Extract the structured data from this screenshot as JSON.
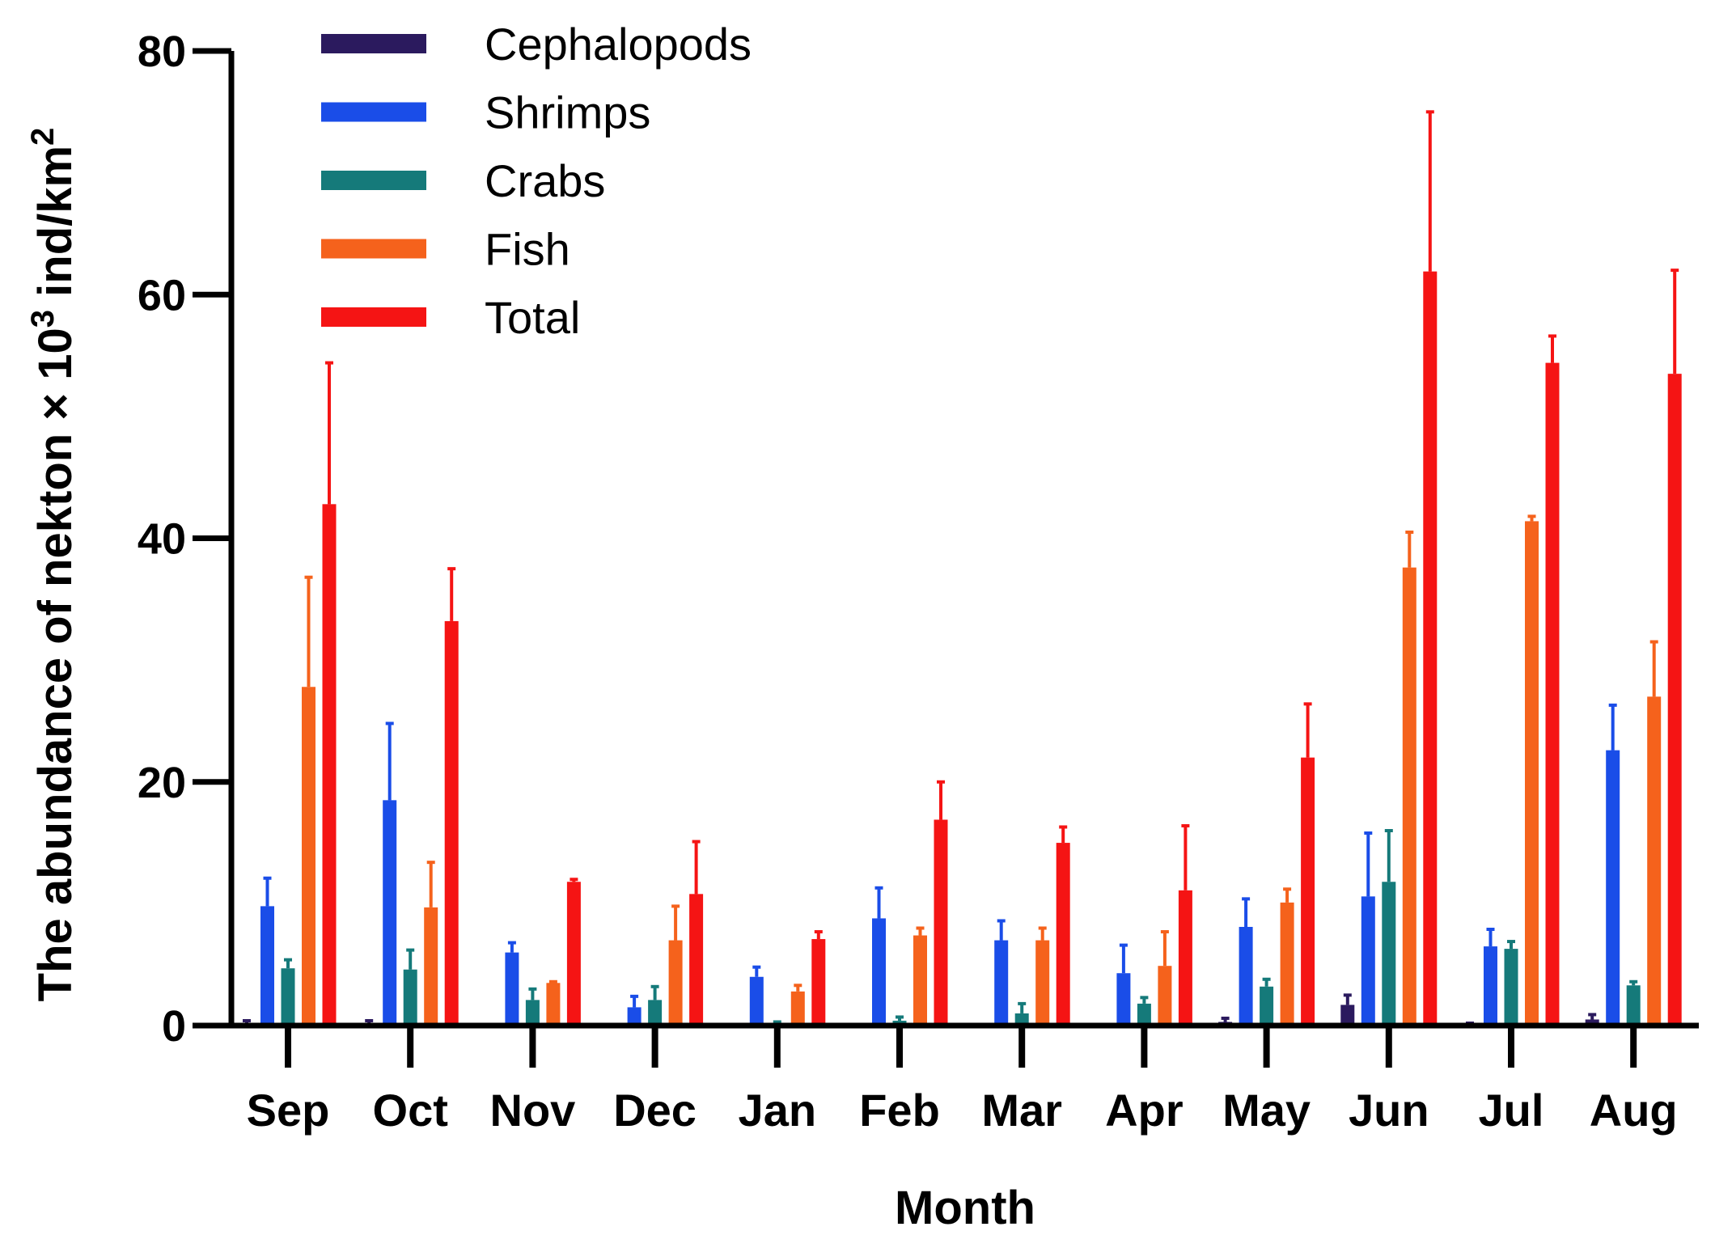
{
  "chart_data": {
    "type": "bar",
    "title": "",
    "xlabel": "Month",
    "ylabel_prefix": "The abundance of nekton × 10",
    "ylabel_exp": "3",
    "ylabel_unit": " ind/km",
    "ylabel_unit_exp": "2",
    "ylim": [
      0,
      80
    ],
    "yticks": [
      0,
      20,
      40,
      60,
      80
    ],
    "grid": false,
    "legend_position": "top-left",
    "categories": [
      "Sep",
      "Oct",
      "Nov",
      "Dec",
      "Jan",
      "Feb",
      "Mar",
      "Apr",
      "May",
      "Jun",
      "Jul",
      "Aug"
    ],
    "series": [
      {
        "name": "Cephalopods",
        "color": "#2b1a5e",
        "values": [
          0.2,
          0.2,
          0,
          0,
          0,
          0,
          0,
          0,
          0.3,
          1.7,
          0.1,
          0.5
        ],
        "errors": [
          0.2,
          0.2,
          0,
          0,
          0,
          0,
          0,
          0,
          0.3,
          0.8,
          0.1,
          0.4
        ]
      },
      {
        "name": "Shrimps",
        "color": "#1a4de8",
        "values": [
          9.8,
          18.5,
          6.0,
          1.5,
          4.0,
          8.8,
          7.0,
          4.3,
          8.1,
          10.6,
          6.5,
          22.6
        ],
        "errors": [
          2.3,
          6.3,
          0.8,
          0.9,
          0.8,
          2.5,
          1.6,
          2.3,
          2.3,
          5.2,
          1.4,
          3.7
        ]
      },
      {
        "name": "Crabs",
        "color": "#157a7a",
        "values": [
          4.7,
          4.6,
          2.1,
          2.1,
          0.2,
          0.4,
          1.0,
          1.8,
          3.2,
          11.8,
          6.3,
          3.3
        ],
        "errors": [
          0.7,
          1.6,
          0.9,
          1.1,
          0.1,
          0.3,
          0.8,
          0.5,
          0.6,
          4.2,
          0.6,
          0.3
        ]
      },
      {
        "name": "Fish",
        "color": "#f5621c",
        "values": [
          27.8,
          9.7,
          3.5,
          7.0,
          2.8,
          7.4,
          7.0,
          4.9,
          10.1,
          37.6,
          41.4,
          27.0
        ],
        "errors": [
          9.0,
          3.7,
          0.1,
          2.8,
          0.5,
          0.6,
          1.0,
          2.8,
          1.1,
          2.9,
          0.4,
          4.5
        ]
      },
      {
        "name": "Total",
        "color": "#f51414",
        "values": [
          42.8,
          33.2,
          11.8,
          10.8,
          7.1,
          16.9,
          15.0,
          11.1,
          22.0,
          61.9,
          54.4,
          53.5
        ],
        "errors": [
          11.6,
          4.3,
          0.2,
          4.3,
          0.6,
          3.1,
          1.3,
          5.3,
          4.4,
          13.1,
          2.2,
          8.5
        ]
      }
    ]
  }
}
